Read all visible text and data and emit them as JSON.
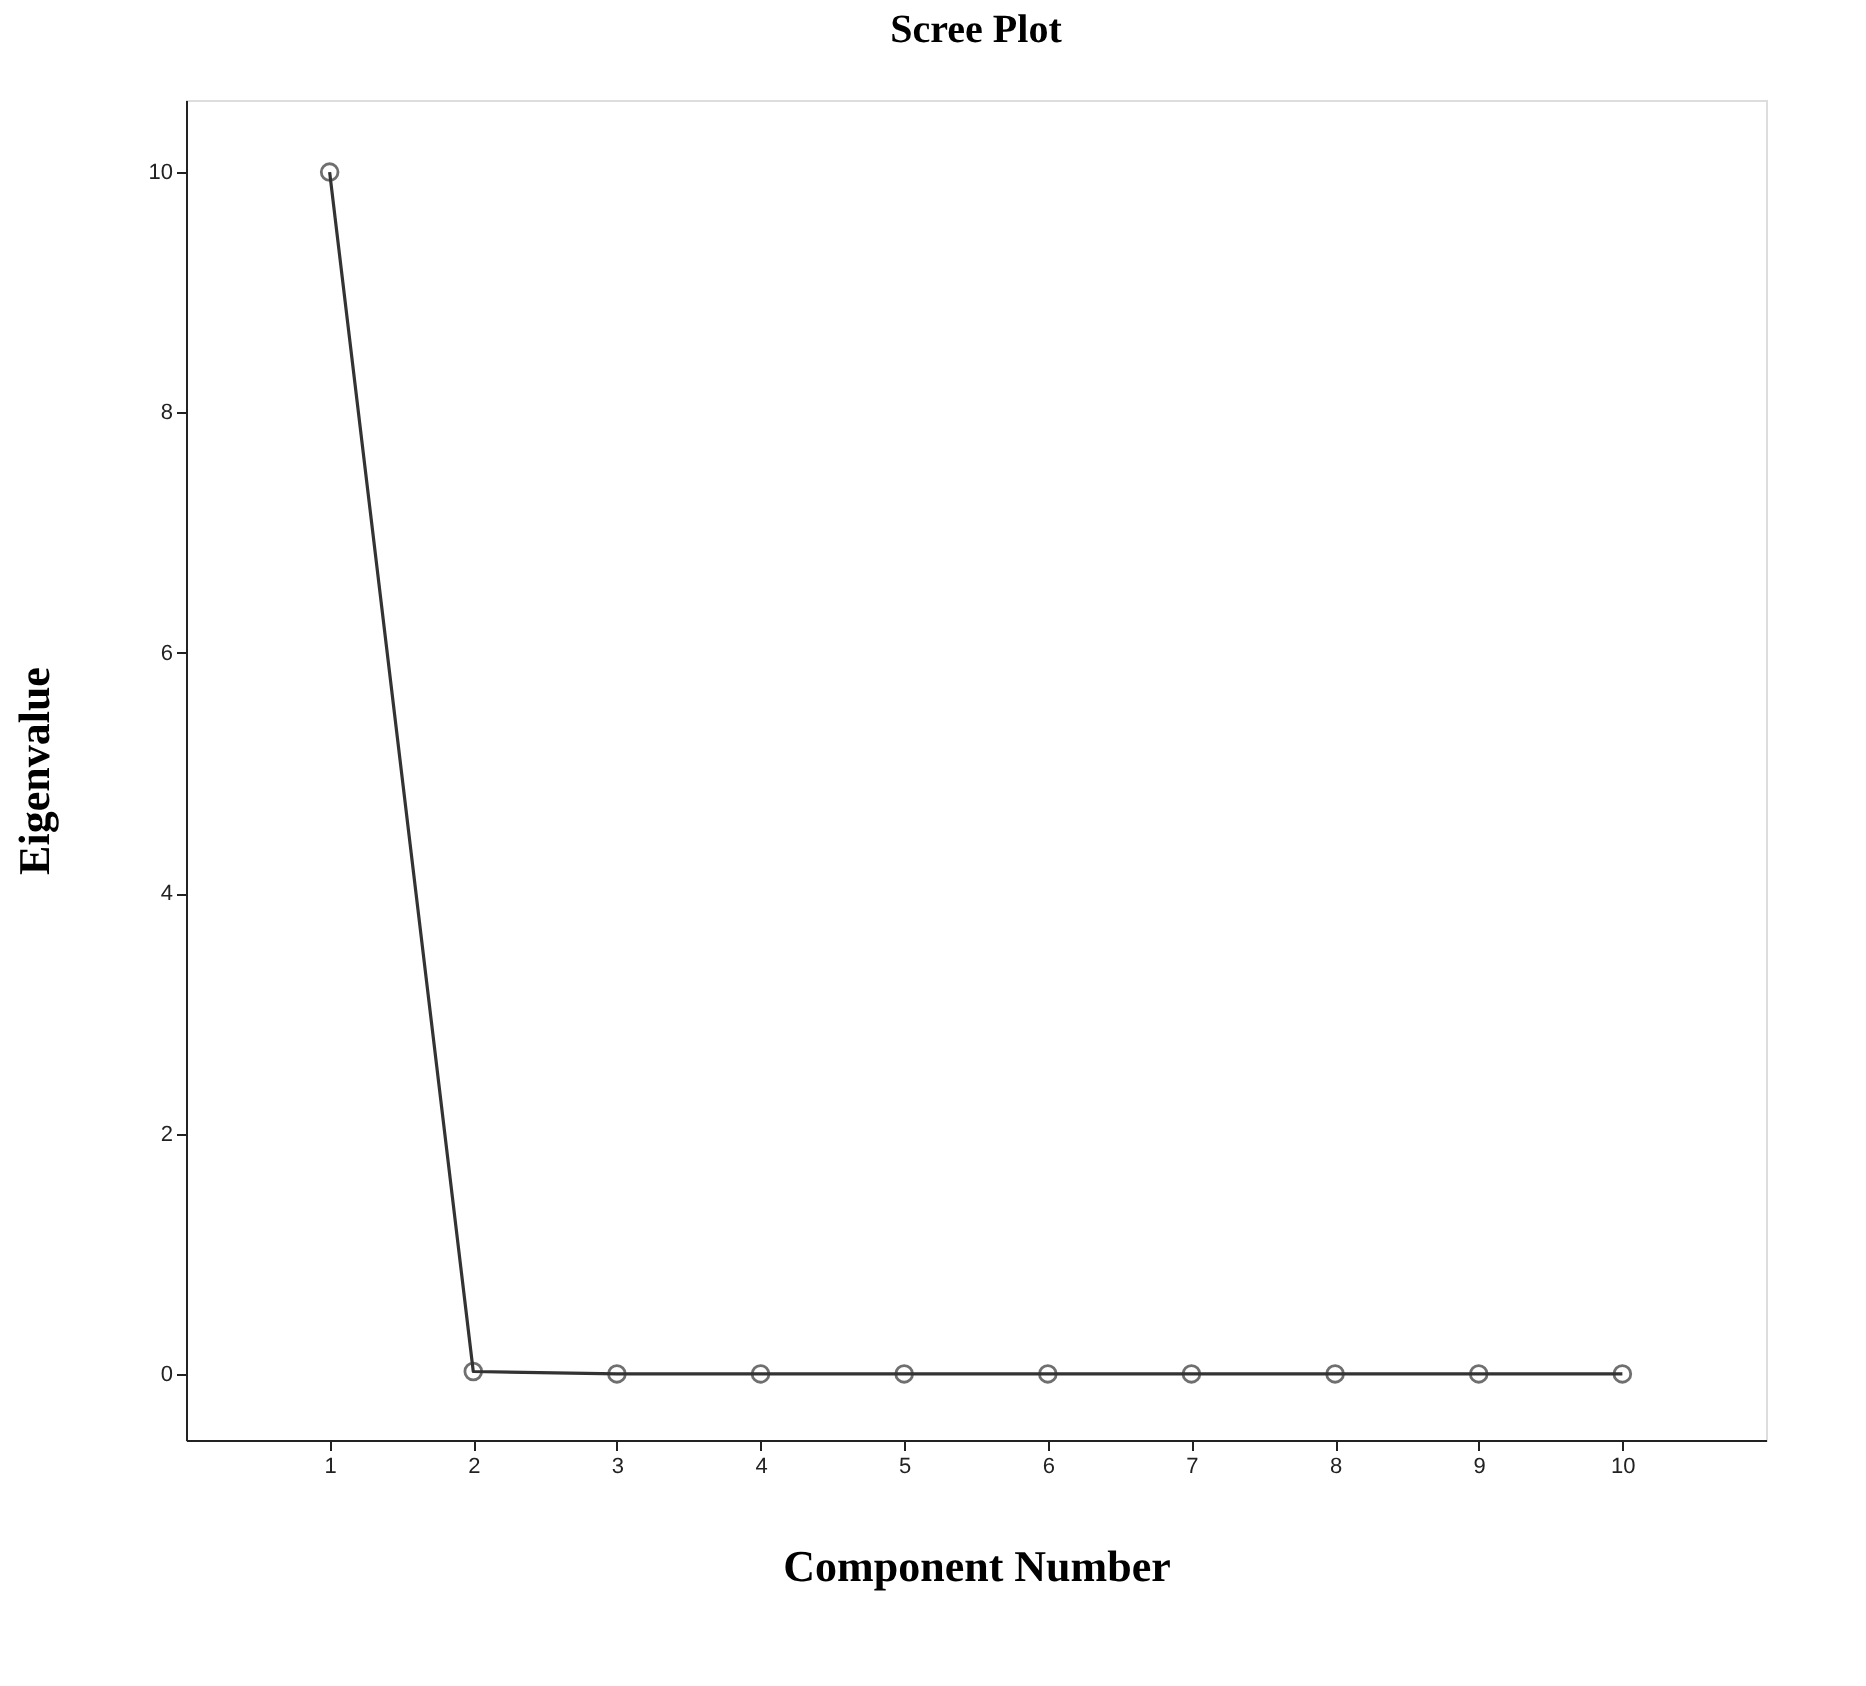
{
  "chart_data": {
    "type": "line",
    "title": "Scree Plot",
    "xlabel": "Component Number",
    "ylabel": "Eigenvalue",
    "x": [
      1,
      2,
      3,
      4,
      5,
      6,
      7,
      8,
      9,
      10
    ],
    "series": [
      {
        "color": "#333333",
        "values": [
          10,
          0.02,
          0,
          0,
          0,
          0,
          0,
          0,
          0,
          0
        ]
      }
    ],
    "xlim": [
      0,
      11
    ],
    "xticks": [
      1,
      2,
      3,
      4,
      5,
      6,
      7,
      8,
      9,
      10
    ],
    "ylim": [
      -0.55,
      10.6
    ],
    "yticks": [
      0,
      2,
      4,
      6,
      8,
      10
    ],
    "grid": false,
    "marker": "circle",
    "line_style": "solid"
  }
}
